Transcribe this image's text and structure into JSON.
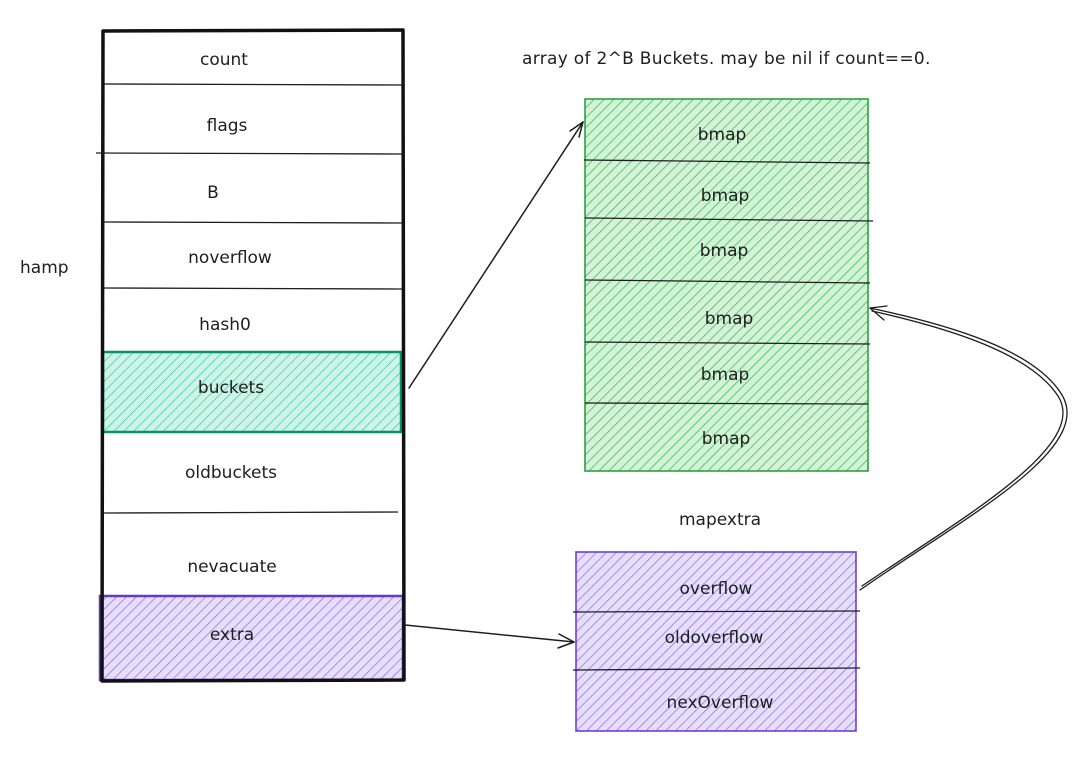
{
  "title_label": "hamp",
  "annotation": "array of 2^B Buckets. may be nil if count==0.",
  "hmap_fields": [
    "count",
    "flags",
    "B",
    "noverflow",
    "hash0",
    "buckets",
    "oldbuckets",
    "nevacuate",
    "extra"
  ],
  "buckets_array": {
    "items": [
      "bmap",
      "bmap",
      "bmap",
      "bmap",
      "bmap",
      "bmap"
    ],
    "color": "#2f9e44"
  },
  "mapextra": {
    "label": "mapextra",
    "fields": [
      "overflow",
      "oldoverflow",
      "nexOverflow"
    ],
    "color": "#6741d9"
  },
  "highlight_colors": {
    "buckets": "#099268",
    "extra": "#5f3dc4"
  }
}
